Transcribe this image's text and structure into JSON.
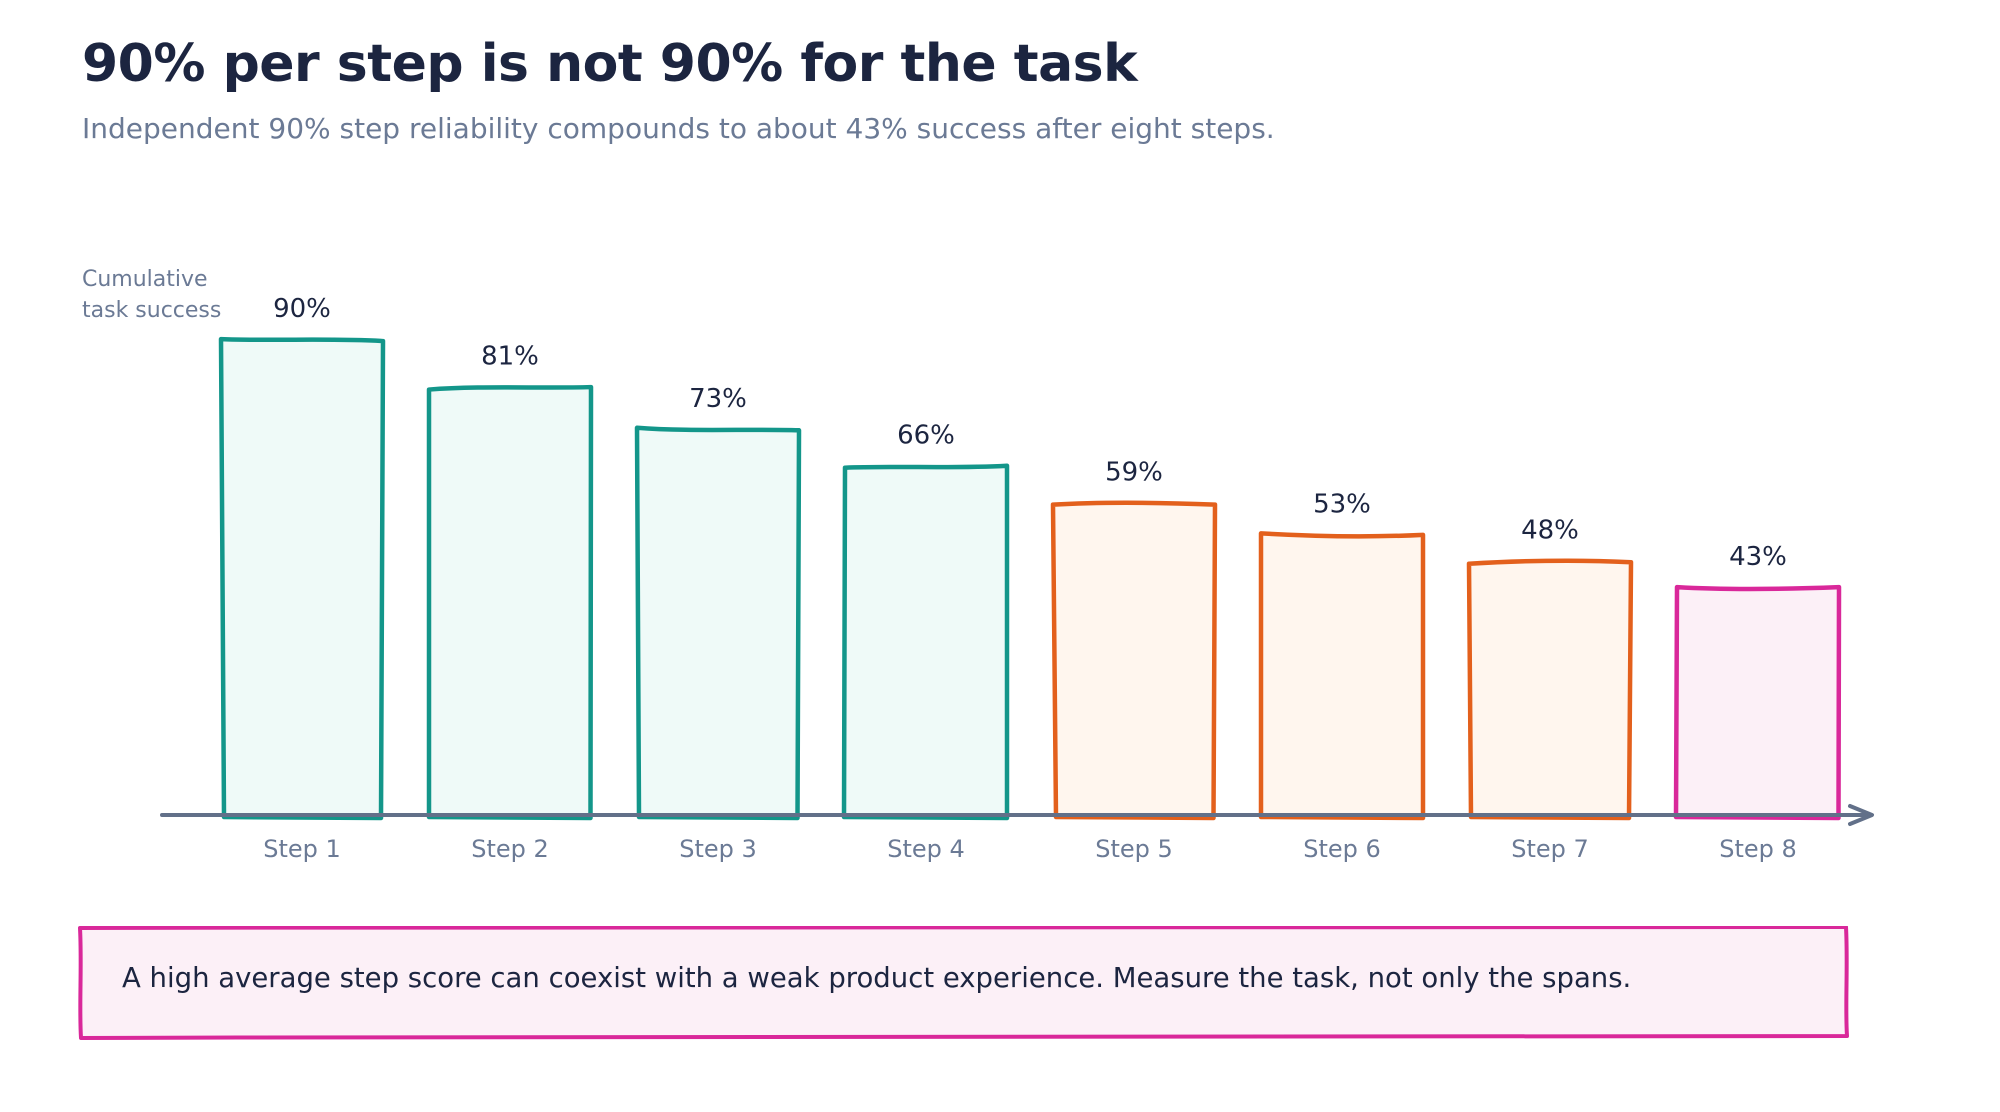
{
  "title": "90% per step is not 90% for the task",
  "subtitle": "Independent 90% step reliability compounds to about 43% success after eight steps.",
  "chart_data": {
    "type": "bar",
    "ylabel": "Cumulative task success",
    "ylabel_lines": [
      "Cumulative",
      "task success"
    ],
    "categories": [
      "Step 1",
      "Step 2",
      "Step 3",
      "Step 4",
      "Step 5",
      "Step 6",
      "Step 7",
      "Step 8"
    ],
    "values": [
      90,
      81,
      73,
      66,
      59,
      53,
      48,
      43
    ],
    "value_labels": [
      "90%",
      "81%",
      "73%",
      "66%",
      "59%",
      "53%",
      "48%",
      "43%"
    ],
    "ylim": [
      0,
      100
    ],
    "grid": false,
    "bar_styles": [
      {
        "stroke": "#13968a",
        "fill": "#effaf8"
      },
      {
        "stroke": "#13968a",
        "fill": "#effaf8"
      },
      {
        "stroke": "#13968a",
        "fill": "#effaf8"
      },
      {
        "stroke": "#13968a",
        "fill": "#effaf8"
      },
      {
        "stroke": "#e3601c",
        "fill": "#fff6ee"
      },
      {
        "stroke": "#e3601c",
        "fill": "#fff6ee"
      },
      {
        "stroke": "#e3601c",
        "fill": "#fff6ee"
      },
      {
        "stroke": "#d9289a",
        "fill": "#fcf0f7"
      }
    ]
  },
  "note": {
    "text": "A high average step score can coexist with a weak product experience. Measure the task, not only the spans.",
    "stroke": "#d9289a",
    "fill": "#fcf0f7"
  },
  "axis_color": "#627089"
}
